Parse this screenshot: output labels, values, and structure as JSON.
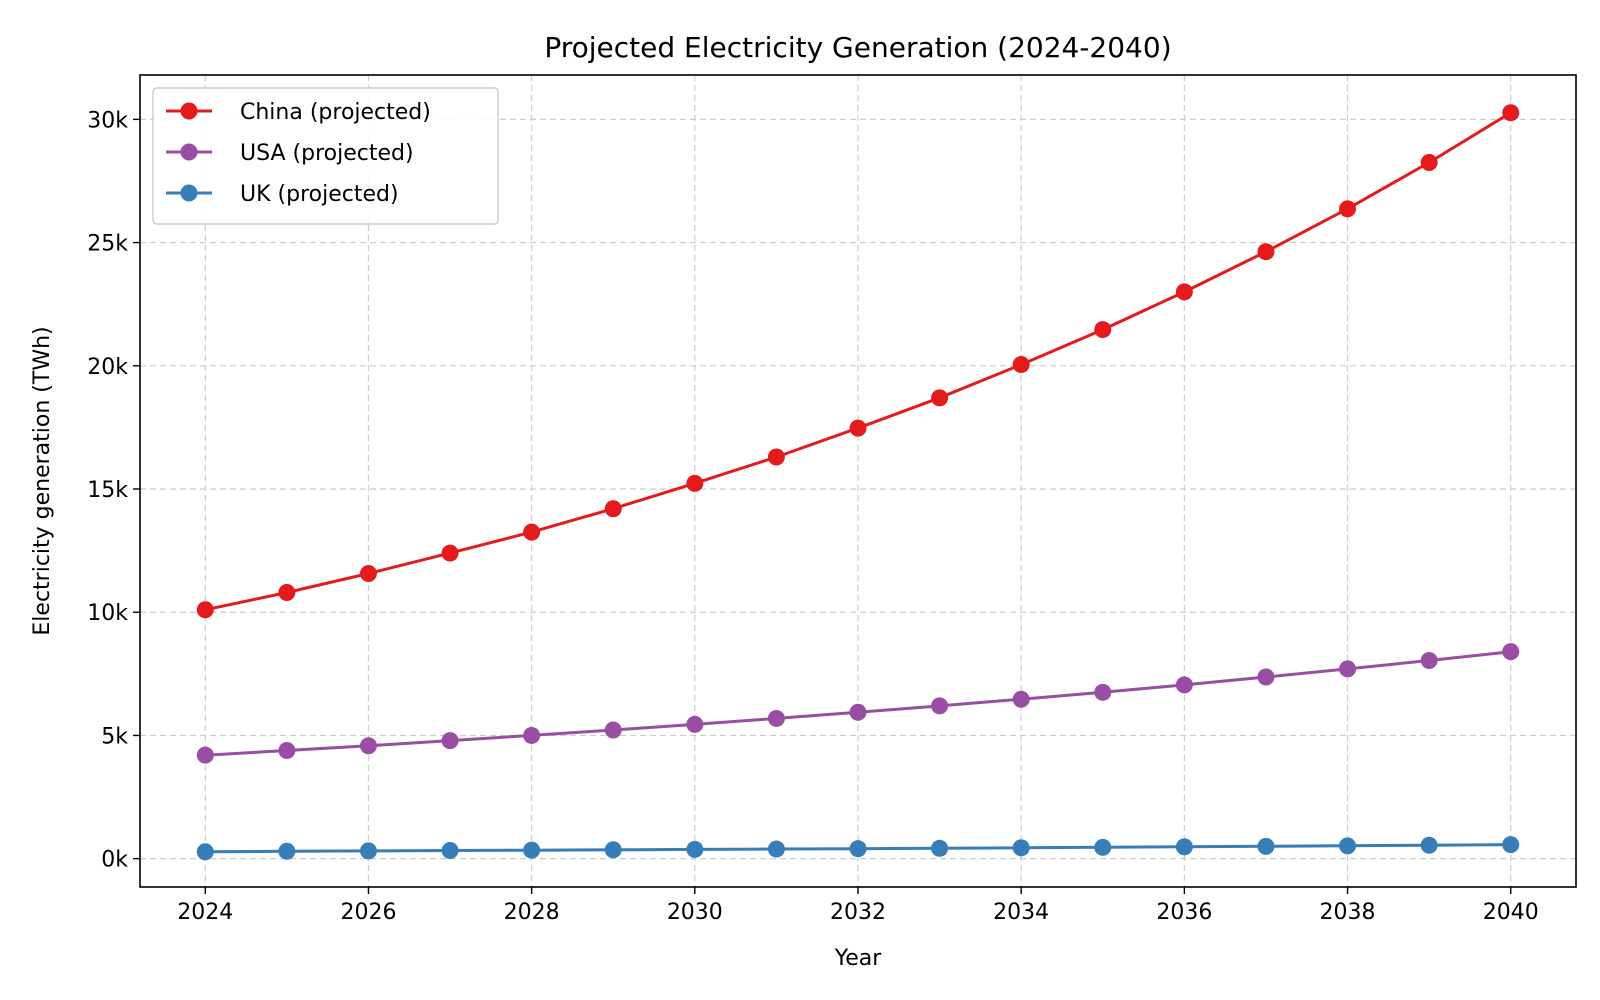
{
  "chart_data": {
    "type": "line",
    "title": "Projected Electricity Generation (2024-2040)",
    "xlabel": "Year",
    "ylabel": "Electricity generation (TWh)",
    "x": [
      2024,
      2025,
      2026,
      2027,
      2028,
      2029,
      2030,
      2031,
      2032,
      2033,
      2034,
      2035,
      2036,
      2037,
      2038,
      2039,
      2040
    ],
    "xlim": [
      2023.2,
      2040.8
    ],
    "ylim": [
      -1150,
      31800
    ],
    "xticks": [
      2024,
      2026,
      2028,
      2030,
      2032,
      2034,
      2036,
      2038,
      2040
    ],
    "xtick_labels": [
      "2024",
      "2026",
      "2028",
      "2030",
      "2032",
      "2034",
      "2036",
      "2038",
      "2040"
    ],
    "yticks": [
      0,
      5000,
      10000,
      15000,
      20000,
      25000,
      30000
    ],
    "ytick_labels": [
      "0k",
      "5k",
      "10k",
      "15k",
      "20k",
      "25k",
      "30k"
    ],
    "grid": true,
    "legend_position": "top-left",
    "series": [
      {
        "name": "China (projected)",
        "color": "#e41a1c",
        "values": [
          10100,
          10800,
          11570,
          12400,
          13250,
          14200,
          15230,
          16300,
          17470,
          18700,
          20050,
          21470,
          23000,
          24630,
          26370,
          28250,
          30270
        ]
      },
      {
        "name": "USA (projected)",
        "color": "#984ea3",
        "values": [
          4200,
          4390,
          4580,
          4790,
          5000,
          5220,
          5450,
          5690,
          5940,
          6200,
          6470,
          6750,
          7050,
          7370,
          7700,
          8040,
          8400
        ]
      },
      {
        "name": "UK (projected)",
        "color": "#377eb8",
        "values": [
          280,
          300,
          315,
          330,
          345,
          360,
          375,
          390,
          405,
          420,
          440,
          460,
          480,
          500,
          520,
          545,
          570
        ]
      }
    ]
  }
}
